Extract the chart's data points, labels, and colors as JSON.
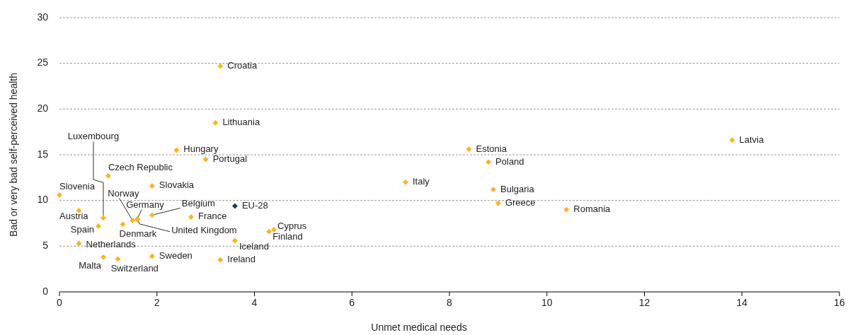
{
  "chart_data": {
    "type": "scatter",
    "xlabel": "Unmet medical needs",
    "ylabel": "Bad or very bad self-perceived health",
    "xlim": [
      0,
      16
    ],
    "xticks": [
      0,
      2,
      4,
      6,
      8,
      10,
      12,
      14,
      16
    ],
    "ylim": [
      0,
      30
    ],
    "yticks": [
      0,
      5,
      10,
      15,
      20,
      25,
      30
    ],
    "grid": "y",
    "marker": "diamond",
    "series": [
      {
        "name": "Croatia",
        "color": "#fbb424",
        "x": [
          3.3
        ],
        "values": [
          24.7
        ]
      },
      {
        "name": "Lithuania",
        "color": "#fbb424",
        "x": [
          3.2
        ],
        "values": [
          18.5
        ]
      },
      {
        "name": "Hungary",
        "color": "#fbb424",
        "x": [
          2.4
        ],
        "values": [
          15.5
        ]
      },
      {
        "name": "Portugal",
        "color": "#fbb424",
        "x": [
          3.0
        ],
        "values": [
          14.5
        ]
      },
      {
        "name": "Estonia",
        "color": "#fbb424",
        "x": [
          8.4
        ],
        "values": [
          15.6
        ]
      },
      {
        "name": "Latvia",
        "color": "#fbb424",
        "x": [
          13.8
        ],
        "values": [
          16.6
        ]
      },
      {
        "name": "Poland",
        "color": "#fbb424",
        "x": [
          8.8
        ],
        "values": [
          14.2
        ]
      },
      {
        "name": "Italy",
        "color": "#fbb424",
        "x": [
          7.1
        ],
        "values": [
          12.0
        ]
      },
      {
        "name": "Bulgaria",
        "color": "#fbb424",
        "x": [
          8.9
        ],
        "values": [
          11.2
        ]
      },
      {
        "name": "Greece",
        "color": "#fbb424",
        "x": [
          9.0
        ],
        "values": [
          9.7
        ]
      },
      {
        "name": "Romania",
        "color": "#fbb424",
        "x": [
          10.4
        ],
        "values": [
          9.0
        ]
      },
      {
        "name": "Slovakia",
        "color": "#fbb424",
        "x": [
          1.9
        ],
        "values": [
          11.6
        ]
      },
      {
        "name": "Czech Republic",
        "color": "#fbb424",
        "x": [
          1.0
        ],
        "values": [
          12.7
        ]
      },
      {
        "name": "Slovenia",
        "color": "#fbb424",
        "x": [
          0.0
        ],
        "values": [
          10.6
        ]
      },
      {
        "name": "Austria",
        "color": "#fbb424",
        "x": [
          0.4
        ],
        "values": [
          8.9
        ]
      },
      {
        "name": "Luxembourg",
        "color": "#fbb424",
        "x": [
          0.9
        ],
        "values": [
          8.1
        ]
      },
      {
        "name": "Spain",
        "color": "#fbb424",
        "x": [
          0.8
        ],
        "values": [
          7.2
        ]
      },
      {
        "name": "Netherlands",
        "color": "#fbb424",
        "x": [
          0.4
        ],
        "values": [
          5.3
        ]
      },
      {
        "name": "Malta",
        "color": "#fbb424",
        "x": [
          0.9
        ],
        "values": [
          3.8
        ]
      },
      {
        "name": "Switzerland",
        "color": "#fbb424",
        "x": [
          1.2
        ],
        "values": [
          3.6
        ]
      },
      {
        "name": "Denmark",
        "color": "#fbb424",
        "x": [
          1.3
        ],
        "values": [
          7.4
        ]
      },
      {
        "name": "Norway",
        "color": "#fbb424",
        "x": [
          1.5
        ],
        "values": [
          7.8
        ]
      },
      {
        "name": "Germany",
        "color": "#fbb424",
        "x": [
          1.6
        ],
        "values": [
          8.0
        ]
      },
      {
        "name": "United Kingdom",
        "color": "#fbb424",
        "x": [
          1.6
        ],
        "values": [
          7.9
        ]
      },
      {
        "name": "Belgium",
        "color": "#fbb424",
        "x": [
          1.9
        ],
        "values": [
          8.4
        ]
      },
      {
        "name": "Sweden",
        "color": "#fbb424",
        "x": [
          1.9
        ],
        "values": [
          3.9
        ]
      },
      {
        "name": "France",
        "color": "#fbb424",
        "x": [
          2.7
        ],
        "values": [
          8.2
        ]
      },
      {
        "name": "EU-28",
        "color": "#1f3a5f",
        "x": [
          3.6
        ],
        "values": [
          9.4
        ]
      },
      {
        "name": "Iceland",
        "color": "#fbb424",
        "x": [
          3.6
        ],
        "values": [
          5.6
        ]
      },
      {
        "name": "Ireland",
        "color": "#fbb424",
        "x": [
          3.3
        ],
        "values": [
          3.5
        ]
      },
      {
        "name": "Cyprus",
        "color": "#fbb424",
        "x": [
          4.4
        ],
        "values": [
          6.8
        ]
      },
      {
        "name": "Finland",
        "color": "#fbb424",
        "x": [
          4.3
        ],
        "values": [
          6.6
        ]
      }
    ]
  }
}
